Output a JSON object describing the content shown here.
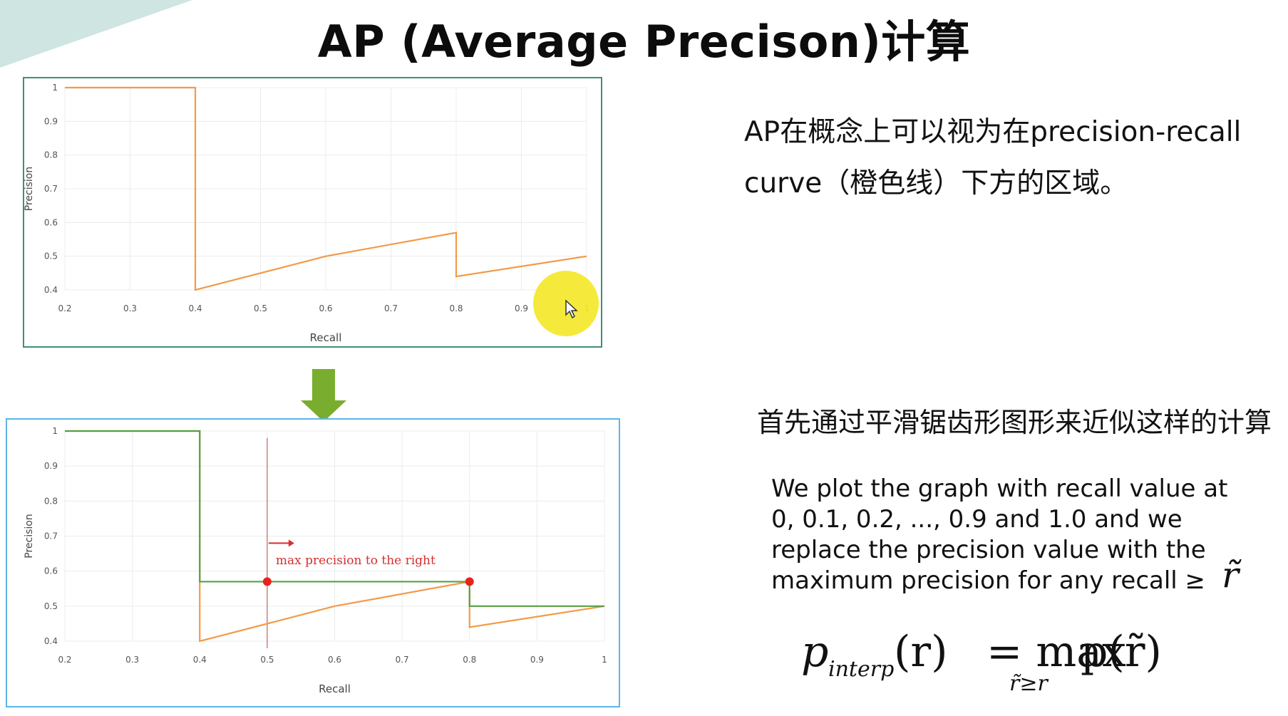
{
  "slide": {
    "title": "AP (Average Precison)计算",
    "ap_description": "AP在概念上可以视为在precision-recall curve（橙色线）下方的区域。",
    "smoothing_description": "首先通过平滑锯齿形图形来近似这样的计算",
    "english_description_lines": [
      "We plot the graph with recall  value at",
      "0, 0.1, 0.2, ..., 0.9 and 1.0 and we",
      "replace the precision value with the",
      "maximum precision for any recall ≥"
    ],
    "formula": {
      "lhs_symbol": "p",
      "lhs_subscript": "interp",
      "lhs_argument": "(r)",
      "operator": "= max",
      "max_subscript": "r̃≥r",
      "rhs": "p(r̃)",
      "trailing_symbol": "r̃"
    }
  },
  "colors": {
    "orange_curve": "#f39a47",
    "green_curve": "#56a046",
    "annotation_red": "#d32f2f",
    "top_border": "#3f8f75",
    "bottom_border": "#5db5e8",
    "arrow_green": "#79ad2e"
  },
  "icons": {
    "down_arrow": "down-arrow-icon",
    "cursor": "mouse-pointer-icon"
  },
  "chart_data": [
    {
      "type": "line",
      "xlabel": "Recall",
      "ylabel": "Precision",
      "xlim": [
        0.2,
        1.0
      ],
      "ylim": [
        0.4,
        1.0
      ],
      "x_ticks": [
        "0.2",
        "0.3",
        "0.4",
        "0.5",
        "0.6",
        "0.7",
        "0.8",
        "0.9",
        "1"
      ],
      "y_ticks": [
        "0.4",
        "0.5",
        "0.6",
        "0.7",
        "0.8",
        "0.9",
        "1"
      ],
      "grid": true,
      "series": [
        {
          "color": "#f39a47",
          "points": [
            [
              0.2,
              1.0
            ],
            [
              0.4,
              1.0
            ],
            [
              0.4,
              0.4
            ],
            [
              0.6,
              0.5
            ],
            [
              0.8,
              0.57
            ],
            [
              0.8,
              0.44
            ],
            [
              1.0,
              0.5
            ]
          ]
        }
      ]
    },
    {
      "type": "line",
      "xlabel": "Recall",
      "ylabel": "Precision",
      "xlim": [
        0.2,
        1.0
      ],
      "ylim": [
        0.4,
        1.0
      ],
      "x_ticks": [
        "0.2",
        "0.3",
        "0.4",
        "0.5",
        "0.6",
        "0.7",
        "0.8",
        "0.9",
        "1"
      ],
      "y_ticks": [
        "0.4",
        "0.5",
        "0.6",
        "0.7",
        "0.8",
        "0.9",
        "1"
      ],
      "grid": true,
      "series": [
        {
          "color": "#f39a47",
          "points": [
            [
              0.2,
              1.0
            ],
            [
              0.4,
              1.0
            ],
            [
              0.4,
              0.4
            ],
            [
              0.6,
              0.5
            ],
            [
              0.8,
              0.57
            ],
            [
              0.8,
              0.44
            ],
            [
              1.0,
              0.5
            ]
          ]
        },
        {
          "color": "#56a046",
          "points": [
            [
              0.2,
              1.0
            ],
            [
              0.4,
              1.0
            ],
            [
              0.4,
              0.57
            ],
            [
              0.8,
              0.57
            ],
            [
              0.8,
              0.5
            ],
            [
              1.0,
              0.5
            ]
          ]
        }
      ],
      "annotation": {
        "text": "max precision to the right",
        "vline_x": 0.5,
        "markers": [
          [
            0.5,
            0.57
          ],
          [
            0.8,
            0.57
          ]
        ]
      }
    }
  ]
}
